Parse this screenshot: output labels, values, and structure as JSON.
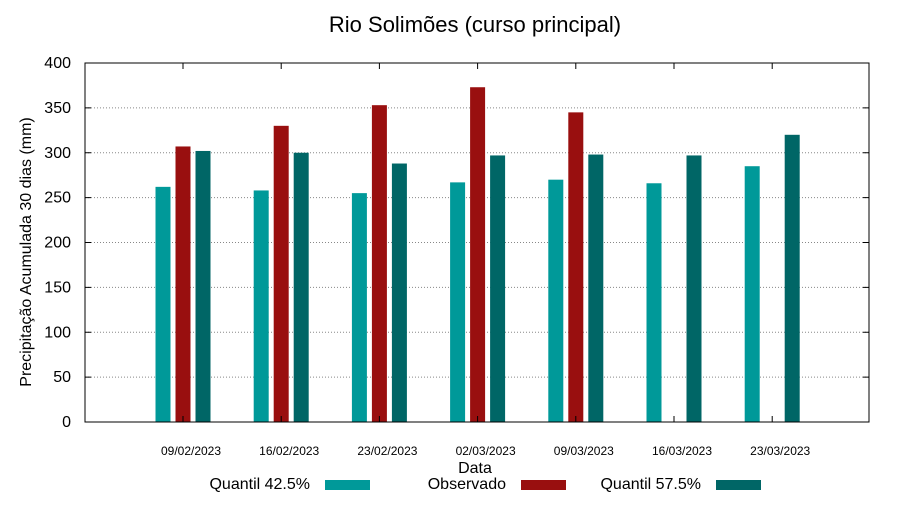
{
  "chart_data": {
    "type": "bar",
    "title": "Rio Solimões (curso principal)",
    "xlabel": "Data",
    "ylabel": "Precipitação Acumulada 30 dias (mm)",
    "ylim": [
      0,
      400
    ],
    "yticks": [
      0,
      50,
      100,
      150,
      200,
      250,
      300,
      350,
      400
    ],
    "grid": "horizontal dotted",
    "legend_position": "bottom",
    "categories": [
      "09/02/2023",
      "16/02/2023",
      "23/02/2023",
      "02/03/2023",
      "09/03/2023",
      "16/03/2023",
      "23/03/2023"
    ],
    "series": [
      {
        "name": "Quantil 42.5%",
        "color": "#009999",
        "values": [
          262,
          258,
          255,
          267,
          270,
          266,
          285
        ]
      },
      {
        "name": "Observado",
        "color": "#990f0f",
        "values": [
          307,
          330,
          353,
          373,
          345,
          null,
          null
        ]
      },
      {
        "name": "Quantil 57.5%",
        "color": "#006666",
        "values": [
          302,
          300,
          288,
          297,
          298,
          297,
          320
        ]
      }
    ]
  }
}
